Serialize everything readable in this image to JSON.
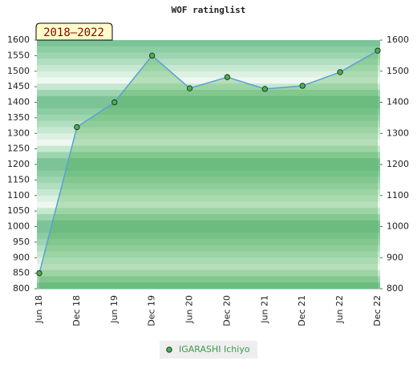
{
  "chart_data": {
    "type": "area",
    "title": "WOF ratinglist",
    "badge": "2018–2022",
    "categories": [
      "Jun 18",
      "Dec 18",
      "Jun 19",
      "Dec 19",
      "Jun 20",
      "Dec 20",
      "Jun 21",
      "Dec 21",
      "Jun 22",
      "Dec 22"
    ],
    "series": [
      {
        "name": "IGARASHI Ichiyo",
        "color": "#4caf50",
        "line_color": "#5aa0d8",
        "values": [
          850,
          1320,
          1400,
          1550,
          1445,
          1481,
          1443,
          1453,
          1497,
          1566
        ]
      }
    ],
    "ylim": [
      800,
      1600
    ],
    "yticks": [
      800,
      850,
      900,
      950,
      1000,
      1050,
      1100,
      1150,
      1200,
      1250,
      1300,
      1350,
      1400,
      1450,
      1500,
      1550,
      1600
    ],
    "y2lim": [
      800,
      1600
    ],
    "y2ticks": [
      800,
      900,
      1000,
      1100,
      1200,
      1300,
      1400,
      1500,
      1600
    ],
    "legend": "bottom"
  }
}
